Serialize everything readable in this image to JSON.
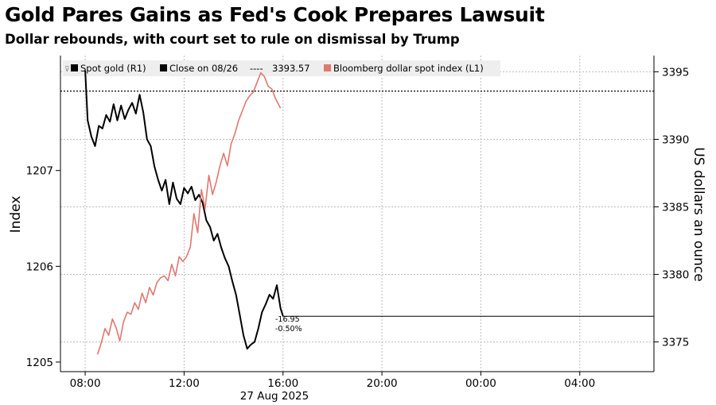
{
  "title": "Gold Pares Gains as Fed's Cook Prepares Lawsuit",
  "subtitle": "Dollar rebounds, with court set to rule on dismissal by Trump",
  "colors": {
    "gold_line": "#000000",
    "dollar_line": "#e07870",
    "grid": "#bbbbbb",
    "legend_bg": "#eeeeee"
  },
  "legend": {
    "gold": "Spot gold (R1)",
    "close": "Close on 08/26",
    "close_value": "3393.57",
    "dollar": "Bloomberg dollar spot index (L1)"
  },
  "annotation": {
    "change": "-16.95",
    "pct": "-0.50%"
  },
  "chart_data": {
    "type": "line",
    "title": "Gold Pares Gains as Fed's Cook Prepares Lawsuit",
    "subtitle": "Dollar rebounds, with court set to rule on dismissal by Trump",
    "x_tick_labels": [
      "08:00",
      "12:00",
      "16:00",
      "20:00",
      "00:00",
      "04:00"
    ],
    "x_tick_hours": [
      8,
      12,
      16,
      20,
      24,
      28
    ],
    "x_range_hours": [
      7,
      31
    ],
    "date_label": "27 Aug 2025",
    "left_axis": {
      "label": "Index",
      "ticks": [
        1205,
        1206,
        1207
      ],
      "range": [
        1204.9,
        1208.2
      ]
    },
    "right_axis": {
      "label": "US dollars an ounce",
      "ticks": [
        3375,
        3380,
        3385,
        3390,
        3395
      ],
      "range": [
        3372.8,
        3396.2
      ]
    },
    "grid": true,
    "legend_position": "top-left",
    "close_reference": 3393.57,
    "series": [
      {
        "name": "Spot gold (R1)",
        "axis": "right",
        "x": [
          8.0,
          8.1,
          8.25,
          8.4,
          8.55,
          8.7,
          8.85,
          9.0,
          9.15,
          9.3,
          9.45,
          9.6,
          9.75,
          9.9,
          10.05,
          10.2,
          10.35,
          10.5,
          10.65,
          10.8,
          10.95,
          11.1,
          11.25,
          11.4,
          11.55,
          11.7,
          11.85,
          12.0,
          12.15,
          12.3,
          12.45,
          12.6,
          12.75,
          12.9,
          13.05,
          13.2,
          13.35,
          13.5,
          13.65,
          13.8,
          13.95,
          14.1,
          14.25,
          14.4,
          14.55,
          14.7,
          14.85,
          15.0,
          15.15,
          15.3,
          15.45,
          15.6,
          15.75,
          15.9,
          16.0
        ],
        "values": [
          3395.1,
          3391.4,
          3390.2,
          3389.5,
          3391.0,
          3390.8,
          3391.8,
          3391.3,
          3392.6,
          3391.4,
          3392.5,
          3391.5,
          3392.2,
          3392.7,
          3391.9,
          3393.3,
          3392.0,
          3390.0,
          3389.5,
          3388.0,
          3387.0,
          3386.2,
          3387.0,
          3385.2,
          3386.8,
          3385.6,
          3385.2,
          3386.4,
          3386.0,
          3386.5,
          3385.5,
          3385.9,
          3385.3,
          3384.0,
          3383.5,
          3382.5,
          3383.0,
          3382.0,
          3381.2,
          3380.6,
          3379.5,
          3378.5,
          3377.0,
          3375.5,
          3374.5,
          3374.8,
          3375.0,
          3376.0,
          3377.2,
          3377.8,
          3378.5,
          3378.2,
          3379.2,
          3377.5,
          3376.9
        ]
      },
      {
        "name": "Bloomberg dollar spot index (L1)",
        "axis": "left",
        "x": [
          8.5,
          8.65,
          8.8,
          8.95,
          9.1,
          9.25,
          9.4,
          9.55,
          9.7,
          9.85,
          10.0,
          10.15,
          10.3,
          10.45,
          10.6,
          10.75,
          10.9,
          11.05,
          11.2,
          11.35,
          11.5,
          11.65,
          11.8,
          11.95,
          12.1,
          12.25,
          12.4,
          12.55,
          12.7,
          12.85,
          13.0,
          13.15,
          13.3,
          13.45,
          13.6,
          13.75,
          13.9,
          14.05,
          14.2,
          14.35,
          14.5,
          14.65,
          14.8,
          14.95,
          15.1,
          15.25,
          15.4,
          15.55,
          15.7,
          15.9
        ],
        "values": [
          1205.08,
          1205.2,
          1205.35,
          1205.28,
          1205.45,
          1205.36,
          1205.22,
          1205.42,
          1205.52,
          1205.5,
          1205.62,
          1205.55,
          1205.72,
          1205.62,
          1205.78,
          1205.7,
          1205.83,
          1205.88,
          1205.9,
          1205.85,
          1206.02,
          1205.9,
          1206.1,
          1206.05,
          1206.1,
          1206.2,
          1206.55,
          1206.35,
          1206.8,
          1206.6,
          1206.95,
          1206.75,
          1206.88,
          1207.05,
          1207.18,
          1207.05,
          1207.28,
          1207.38,
          1207.52,
          1207.62,
          1207.72,
          1207.78,
          1207.82,
          1207.92,
          1208.02,
          1207.98,
          1207.88,
          1207.85,
          1207.75,
          1207.65
        ]
      }
    ]
  }
}
